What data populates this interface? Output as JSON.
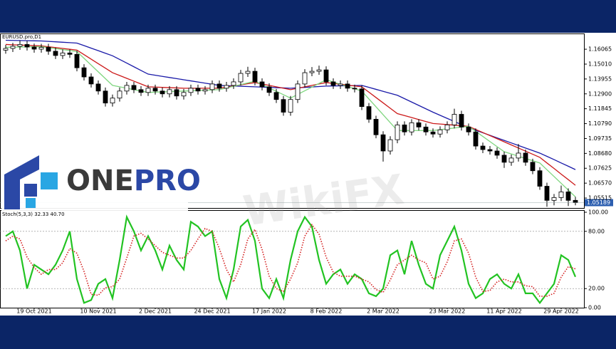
{
  "chart_data": [
    {
      "type": "candlestick",
      "title": "EURUSD.pro,D1",
      "categories": [
        null,
        null,
        null,
        null,
        "19 Oct 2021",
        null,
        null,
        null,
        null,
        null,
        null,
        null,
        null,
        "10 Nov 2021",
        null,
        null,
        null,
        null,
        null,
        null,
        null,
        "2 Dec 2021",
        null,
        null,
        null,
        null,
        null,
        null,
        null,
        "24 Dec 2021",
        null,
        null,
        null,
        null,
        null,
        null,
        null,
        "17 Jan 2022",
        null,
        null,
        null,
        null,
        null,
        null,
        null,
        "8 Feb 2022",
        null,
        null,
        null,
        null,
        null,
        null,
        null,
        "2 Mar 2022",
        null,
        null,
        null,
        null,
        null,
        null,
        null,
        null,
        "23 Mar 2022",
        null,
        null,
        null,
        null,
        null,
        null,
        null,
        "11 Apr 2022",
        null,
        null,
        null,
        null,
        null,
        null,
        null,
        "29 Apr 2022",
        null,
        null
      ],
      "ohlc": [
        [
          1.16,
          1.1637,
          1.1575,
          1.1612
        ],
        [
          1.1612,
          1.1652,
          1.1587,
          1.1627
        ],
        [
          1.1627,
          1.1668,
          1.1602,
          1.164
        ],
        [
          1.164,
          1.1665,
          1.1597,
          1.1622
        ],
        [
          1.1622,
          1.1647,
          1.1582,
          1.1607
        ],
        [
          1.1607,
          1.1645,
          1.1582,
          1.162
        ],
        [
          1.162,
          1.1645,
          1.1567,
          1.1592
        ],
        [
          1.1592,
          1.1617,
          1.1537,
          1.1562
        ],
        [
          1.1562,
          1.1605,
          1.1537,
          1.158
        ],
        [
          1.158,
          1.1605,
          1.1545,
          1.157
        ],
        [
          1.157,
          1.1595,
          1.145,
          1.1475
        ],
        [
          1.1475,
          1.15,
          1.1385,
          1.141
        ],
        [
          1.141,
          1.1435,
          1.1335,
          1.136
        ],
        [
          1.136,
          1.1385,
          1.1285,
          1.131
        ],
        [
          1.131,
          1.1335,
          1.12,
          1.1225
        ],
        [
          1.1225,
          1.1285,
          1.12,
          1.126
        ],
        [
          1.126,
          1.1335,
          1.1235,
          1.131
        ],
        [
          1.131,
          1.1375,
          1.1285,
          1.135
        ],
        [
          1.135,
          1.1375,
          1.1295,
          1.132
        ],
        [
          1.132,
          1.1345,
          1.1275,
          1.13
        ],
        [
          1.13,
          1.1355,
          1.1275,
          1.133
        ],
        [
          1.133,
          1.1355,
          1.1285,
          1.131
        ],
        [
          1.131,
          1.1335,
          1.1265,
          1.129
        ],
        [
          1.129,
          1.1345,
          1.1265,
          1.132
        ],
        [
          1.132,
          1.1345,
          1.125,
          1.1275
        ],
        [
          1.1275,
          1.1325,
          1.125,
          1.13
        ],
        [
          1.13,
          1.1355,
          1.1275,
          1.133
        ],
        [
          1.133,
          1.1355,
          1.1285,
          1.131
        ],
        [
          1.131,
          1.1345,
          1.1285,
          1.132
        ],
        [
          1.132,
          1.1385,
          1.1295,
          1.136
        ],
        [
          1.136,
          1.1385,
          1.1305,
          1.133
        ],
        [
          1.133,
          1.1375,
          1.1305,
          1.135
        ],
        [
          1.135,
          1.14,
          1.1325,
          1.1375
        ],
        [
          1.1375,
          1.146,
          1.135,
          1.1435
        ],
        [
          1.1435,
          1.1482,
          1.141,
          1.145
        ],
        [
          1.145,
          1.1475,
          1.135,
          1.1375
        ],
        [
          1.1375,
          1.14,
          1.1315,
          1.134
        ],
        [
          1.134,
          1.1365,
          1.1275,
          1.13
        ],
        [
          1.13,
          1.1325,
          1.1225,
          1.125
        ],
        [
          1.125,
          1.1275,
          1.1135,
          1.116
        ],
        [
          1.116,
          1.1275,
          1.1135,
          1.125
        ],
        [
          1.125,
          1.1385,
          1.1225,
          1.136
        ],
        [
          1.136,
          1.1465,
          1.1335,
          1.144
        ],
        [
          1.144,
          1.148,
          1.1415,
          1.145
        ],
        [
          1.145,
          1.149,
          1.1425,
          1.146
        ],
        [
          1.146,
          1.1485,
          1.135,
          1.1375
        ],
        [
          1.1375,
          1.14,
          1.1325,
          1.135
        ],
        [
          1.135,
          1.1385,
          1.1325,
          1.136
        ],
        [
          1.136,
          1.1385,
          1.1305,
          1.133
        ],
        [
          1.133,
          1.1355,
          1.13,
          1.1325
        ],
        [
          1.1325,
          1.135,
          1.1175,
          1.12
        ],
        [
          1.12,
          1.1225,
          1.1085,
          1.111
        ],
        [
          1.111,
          1.1135,
          1.0975,
          1.1
        ],
        [
          1.1,
          1.1025,
          1.081,
          1.0885
        ],
        [
          1.0885,
          1.099,
          1.086,
          1.0965
        ],
        [
          1.0965,
          1.1095,
          1.094,
          1.107
        ],
        [
          1.107,
          1.1095,
          1.0995,
          1.102
        ],
        [
          1.102,
          1.111,
          1.0995,
          1.1085
        ],
        [
          1.1085,
          1.111,
          1.103,
          1.1055
        ],
        [
          1.1055,
          1.108,
          1.0995,
          1.102
        ],
        [
          1.102,
          1.1045,
          1.098,
          1.1005
        ],
        [
          1.1005,
          1.106,
          1.098,
          1.1035
        ],
        [
          1.1035,
          1.1095,
          1.101,
          1.107
        ],
        [
          1.107,
          1.1185,
          1.1045,
          1.1145
        ],
        [
          1.1145,
          1.117,
          1.103,
          1.1055
        ],
        [
          1.1055,
          1.108,
          1.0995,
          1.102
        ],
        [
          1.102,
          1.1045,
          1.0895,
          1.092
        ],
        [
          1.092,
          1.0945,
          1.087,
          1.0895
        ],
        [
          1.0895,
          1.092,
          1.086,
          1.0885
        ],
        [
          1.0885,
          1.091,
          1.083,
          1.0855
        ],
        [
          1.0855,
          1.088,
          1.0765,
          1.0805
        ],
        [
          1.0805,
          1.086,
          1.078,
          1.0835
        ],
        [
          1.0835,
          1.0935,
          1.081,
          1.087
        ],
        [
          1.087,
          1.0895,
          1.078,
          1.0805
        ],
        [
          1.0805,
          1.083,
          1.072,
          1.0745
        ],
        [
          1.0745,
          1.077,
          1.061,
          1.0635
        ],
        [
          1.0635,
          1.066,
          1.049,
          1.0535
        ],
        [
          1.0535,
          1.058,
          1.05,
          1.0555
        ],
        [
          1.0555,
          1.064,
          1.053,
          1.0595
        ],
        [
          1.0595,
          1.062,
          1.0495,
          1.0535
        ],
        [
          1.0535,
          1.056,
          1.05,
          1.0519
        ]
      ],
      "series": [
        {
          "color": "#1a1aa8",
          "values": [
            1.167,
            1.1669,
            1.1668,
            1.1667,
            1.1666,
            1.1665,
            1.1662,
            1.1659,
            1.1656,
            1.1653,
            1.165,
            1.1632,
            1.1614,
            1.1596,
            1.1578,
            1.156,
            1.1534,
            1.1508,
            1.1482,
            1.1456,
            1.143,
            1.1422,
            1.1414,
            1.1406,
            1.1398,
            1.139,
            1.1382,
            1.1374,
            1.1366,
            1.1358,
            1.135,
            1.1348,
            1.1346,
            1.1344,
            1.1342,
            1.134,
            1.1338,
            1.1336,
            1.1334,
            1.1332,
            1.133,
            1.1333,
            1.1336,
            1.1339,
            1.1342,
            1.1345,
            1.1346,
            1.1347,
            1.1348,
            1.1349,
            1.135,
            1.1336,
            1.1322,
            1.1308,
            1.1294,
            1.128,
            1.1256,
            1.1232,
            1.1208,
            1.1184,
            1.116,
            1.1138,
            1.1116,
            1.1094,
            1.1072,
            1.105,
            1.1032,
            1.1014,
            1.0996,
            1.0978,
            1.096,
            1.0942,
            1.0924,
            1.0906,
            1.0888,
            1.087,
            1.0847,
            1.0824,
            1.08,
            1.0777,
            1.0753
          ]
        },
        {
          "color": "#cc1a1a",
          "values": [
            1.164,
            1.1638,
            1.1636,
            1.1634,
            1.1632,
            1.163,
            1.1624,
            1.1618,
            1.1612,
            1.1606,
            1.16,
            1.1568,
            1.1536,
            1.1504,
            1.1472,
            1.144,
            1.142,
            1.14,
            1.138,
            1.136,
            1.134,
            1.1338,
            1.1336,
            1.1334,
            1.1332,
            1.133,
            1.133,
            1.133,
            1.133,
            1.133,
            1.133,
            1.1338,
            1.1346,
            1.1354,
            1.1362,
            1.137,
            1.136,
            1.135,
            1.134,
            1.133,
            1.132,
            1.133,
            1.134,
            1.135,
            1.136,
            1.137,
            1.1364,
            1.1358,
            1.1352,
            1.1346,
            1.134,
            1.1302,
            1.1264,
            1.1226,
            1.1188,
            1.115,
            1.1136,
            1.1122,
            1.1108,
            1.1094,
            1.108,
            1.1076,
            1.1072,
            1.1068,
            1.1064,
            1.106,
            1.1038,
            1.1016,
            1.0994,
            1.0972,
            1.095,
            1.0928,
            1.0906,
            1.0884,
            1.0862,
            1.084,
            1.08,
            1.0761,
            1.0721,
            1.0682,
            1.0642
          ]
        },
        {
          "color": "#7fd67f",
          "values": [
            1.162,
            1.1621,
            1.1622,
            1.1623,
            1.1624,
            1.1625,
            1.1618,
            1.1611,
            1.1604,
            1.1597,
            1.159,
            1.1542,
            1.1494,
            1.1446,
            1.1398,
            1.135,
            1.134,
            1.133,
            1.132,
            1.131,
            1.13,
            1.1302,
            1.1304,
            1.1306,
            1.1308,
            1.131,
            1.1312,
            1.1314,
            1.1316,
            1.1318,
            1.132,
            1.1332,
            1.1344,
            1.1356,
            1.1368,
            1.138,
            1.1356,
            1.1332,
            1.1308,
            1.1284,
            1.126,
            1.1286,
            1.1312,
            1.1338,
            1.1364,
            1.139,
            1.1374,
            1.1358,
            1.1342,
            1.1326,
            1.131,
            1.1254,
            1.1198,
            1.1142,
            1.1086,
            1.103,
            1.103,
            1.103,
            1.103,
            1.103,
            1.103,
            1.1036,
            1.1042,
            1.1048,
            1.1054,
            1.106,
            1.1024,
            1.0988,
            1.0952,
            1.0916,
            1.088,
            1.0864,
            1.0848,
            1.0832,
            1.0816,
            1.08,
            1.0752,
            1.0704,
            1.0656,
            1.0608,
            1.056
          ]
        }
      ],
      "last_price": 1.05189,
      "ylim": [
        1.0481,
        1.1713
      ],
      "yticks": [
        1.16065,
        {
          "value": 1.1501,
          "label": "1.15010"
        },
        1.13955,
        {
          "value": 1.129,
          "label": "1.12900"
        },
        1.11845,
        {
          "value": 1.1079,
          "label": "1.10790"
        },
        1.09735,
        {
          "value": 1.0868,
          "label": "1.08680"
        },
        1.07625,
        {
          "value": 1.0657,
          "label": "1.06570"
        },
        1.05515
      ],
      "grid": false
    },
    {
      "type": "line",
      "title": "Stoch(5,3,3) 32.33 40.70",
      "series": [
        {
          "color": "#22c322",
          "values": [
            75,
            80,
            60,
            20,
            45,
            40,
            35,
            45,
            60,
            80,
            30,
            5,
            8,
            25,
            30,
            10,
            50,
            95,
            80,
            60,
            75,
            60,
            40,
            65,
            50,
            40,
            90,
            85,
            75,
            80,
            30,
            10,
            40,
            85,
            92,
            70,
            20,
            10,
            30,
            10,
            50,
            80,
            95,
            85,
            50,
            25,
            35,
            40,
            25,
            35,
            30,
            15,
            12,
            20,
            55,
            60,
            35,
            70,
            45,
            25,
            20,
            55,
            70,
            85,
            60,
            25,
            10,
            15,
            30,
            35,
            25,
            20,
            35,
            15,
            15,
            5,
            15,
            25,
            55,
            50,
            32.33
          ]
        },
        {
          "color": "#d42020",
          "dashed": true,
          "values": [
            70,
            75,
            72,
            53,
            42,
            35,
            40,
            40,
            47,
            62,
            57,
            38,
            14,
            13,
            21,
            22,
            30,
            52,
            75,
            78,
            72,
            65,
            58,
            55,
            52,
            52,
            60,
            72,
            83,
            80,
            62,
            40,
            27,
            45,
            72,
            82,
            61,
            33,
            20,
            17,
            30,
            47,
            75,
            87,
            77,
            53,
            37,
            33,
            33,
            33,
            30,
            27,
            19,
            16,
            29,
            45,
            50,
            55,
            50,
            47,
            30,
            33,
            48,
            70,
            72,
            57,
            32,
            17,
            18,
            27,
            30,
            27,
            27,
            23,
            22,
            12,
            12,
            15,
            32,
            43,
            40.7
          ]
        }
      ],
      "levels": [
        80,
        20
      ],
      "ylim": [
        0,
        100
      ],
      "yticks": [
        {
          "value": 100,
          "label": "100.00"
        },
        {
          "value": 80,
          "label": "80.00"
        },
        {
          "value": 20,
          "label": "20.00"
        },
        {
          "value": 0,
          "label": "0.00"
        }
      ]
    }
  ],
  "overlay": {
    "logo_left": "ONE",
    "logo_right": "PRO",
    "watermark": "WikiFX"
  }
}
